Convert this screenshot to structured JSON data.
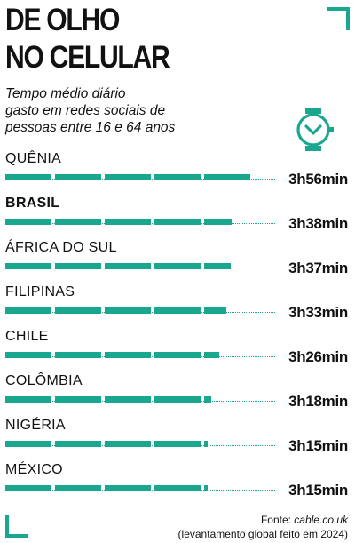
{
  "header": {
    "title_line1": "DE OLHO",
    "title_line2": "NO CELULAR",
    "subtitle_line1": "Tempo médio diário",
    "subtitle_line2": "gasto em redes sociais de",
    "subtitle_line3": "pessoas entre 16 e 64 anos"
  },
  "icons": {
    "watch": "watch-icon",
    "corner": "corner-bracket"
  },
  "colors": {
    "accent": "#19a88f",
    "text": "#111111"
  },
  "chart_data": {
    "type": "bar",
    "orientation": "horizontal",
    "categories": [
      "QUÊNIA",
      "BRASIL",
      "ÁFRICA DO SUL",
      "FILIPINAS",
      "CHILE",
      "COLÔMBIA",
      "NIGÉRIA",
      "MÉXICO"
    ],
    "values_minutes": [
      236,
      218,
      217,
      213,
      206,
      198,
      195,
      195
    ],
    "value_labels": [
      "3h56min",
      "3h38min",
      "3h37min",
      "3h33min",
      "3h26min",
      "3h18min",
      "3h15min",
      "3h15min"
    ],
    "highlight": "BRASIL",
    "grid": false,
    "legend": "none"
  },
  "source": {
    "label": "Fonte: ",
    "name": "cable.co.uk",
    "note": "(levantamento global feito em 2024)"
  }
}
